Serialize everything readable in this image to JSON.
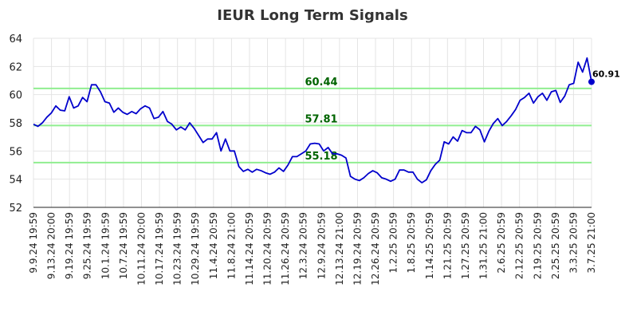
{
  "chart_data": {
    "type": "line",
    "title": "IEUR Long Term Signals",
    "xlabel": "",
    "ylabel": "",
    "ylim": [
      52,
      64
    ],
    "yticks": [
      52,
      54,
      56,
      58,
      60,
      62,
      64
    ],
    "grid": true,
    "x_tick_labels": [
      "9.9.24 19:59",
      "9.13.24 20:00",
      "9.19.24 19:59",
      "9.25.24 19:59",
      "10.1.24 19:59",
      "10.7.24 19:59",
      "10.11.24 20:00",
      "10.17.24 19:59",
      "10.23.24 19:59",
      "10.29.24 19:59",
      "11.4.24 20:59",
      "11.8.24 21:00",
      "11.14.24 20:59",
      "11.20.24 20:59",
      "11.26.24 20:59",
      "12.3.24 20:59",
      "12.9.24 20:59",
      "12.13.24 21:00",
      "12.19.24 20:59",
      "12.26.24 20:59",
      "1.2.25 20:59",
      "1.8.25 20:59",
      "1.14.25 20:59",
      "1.21.25 20:59",
      "1.27.25 20:59",
      "1.31.25 21:00",
      "2.6.25 20:59",
      "2.12.25 20:59",
      "2.19.25 20:59",
      "2.25.25 20:59",
      "3.3.25 20:59",
      "3.7.25 21:00"
    ],
    "series": [
      {
        "color": "#0000cc",
        "values": [
          57.9,
          57.75,
          58.0,
          58.4,
          58.7,
          59.2,
          58.9,
          58.85,
          59.85,
          59.05,
          59.2,
          59.8,
          59.5,
          60.7,
          60.7,
          60.2,
          59.5,
          59.4,
          58.75,
          59.05,
          58.75,
          58.6,
          58.8,
          58.65,
          59.0,
          59.2,
          59.05,
          58.3,
          58.4,
          58.8,
          58.1,
          57.9,
          57.5,
          57.7,
          57.5,
          58.0,
          57.6,
          57.1,
          56.6,
          56.85,
          56.85,
          57.3,
          56.0,
          56.85,
          56.0,
          56.0,
          54.9,
          54.55,
          54.7,
          54.5,
          54.7,
          54.6,
          54.45,
          54.35,
          54.5,
          54.8,
          54.55,
          55.0,
          55.6,
          55.6,
          55.8,
          56.0,
          56.5,
          56.55,
          56.5,
          56.0,
          56.25,
          55.8,
          55.8,
          55.7,
          55.5,
          54.2,
          54.0,
          53.9,
          54.1,
          54.4,
          54.6,
          54.45,
          54.1,
          54.0,
          53.85,
          54.0,
          54.65,
          54.65,
          54.5,
          54.5,
          54.0,
          53.75,
          53.95,
          54.6,
          55.05,
          55.35,
          56.65,
          56.5,
          57.0,
          56.7,
          57.45,
          57.3,
          57.3,
          57.75,
          57.5,
          56.65,
          57.4,
          57.95,
          58.3,
          57.8,
          58.1,
          58.5,
          58.95,
          59.6,
          59.8,
          60.1,
          59.4,
          59.85,
          60.1,
          59.6,
          60.2,
          60.3,
          59.45,
          59.9,
          60.7,
          60.8,
          62.3,
          61.6,
          62.6,
          60.91
        ]
      }
    ],
    "levels": [
      {
        "value": 60.44,
        "label": "60.44"
      },
      {
        "value": 57.81,
        "label": "57.81"
      },
      {
        "value": 55.18,
        "label": "55.18"
      }
    ],
    "level_color": "#90ee90",
    "level_label_color": "#006400",
    "last_value_label": "60.91"
  }
}
